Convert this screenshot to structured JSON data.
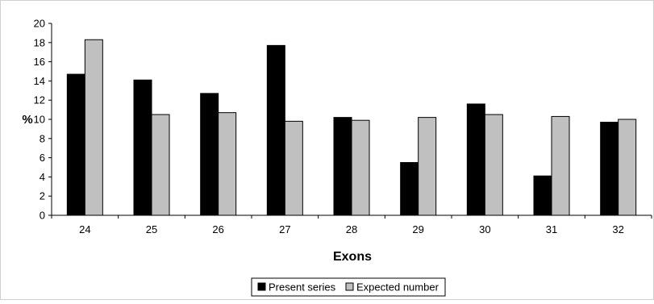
{
  "chart_data": {
    "type": "bar",
    "title": "",
    "xlabel": "Exons",
    "ylabel": "%",
    "ylim": [
      0,
      20
    ],
    "yticks": [
      0,
      2,
      4,
      6,
      8,
      10,
      12,
      14,
      16,
      18,
      20
    ],
    "categories": [
      "24",
      "25",
      "26",
      "27",
      "28",
      "29",
      "30",
      "31",
      "32"
    ],
    "series": [
      {
        "name": "Present series",
        "color": "#000000",
        "values": [
          14.7,
          14.1,
          12.7,
          17.7,
          10.2,
          5.5,
          11.6,
          4.1,
          9.7
        ]
      },
      {
        "name": "Expected number",
        "color": "#c0c0c0",
        "values": [
          18.3,
          10.5,
          10.7,
          9.8,
          9.9,
          10.2,
          10.5,
          10.3,
          10.0
        ]
      }
    ],
    "grid": false,
    "legend_position": "bottom"
  }
}
